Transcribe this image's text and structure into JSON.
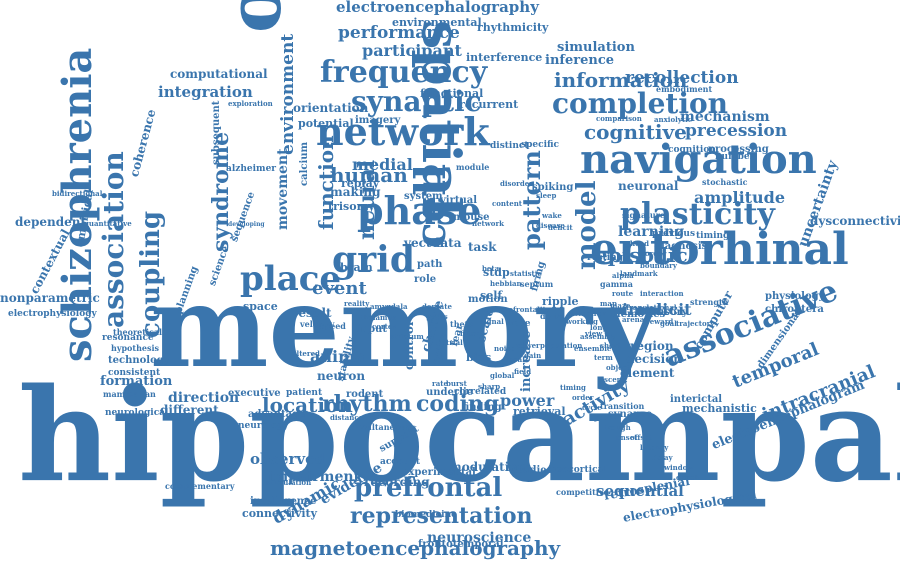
{
  "colors": {
    "primary": "#3a75ad",
    "background": "#ffffff"
  },
  "words": [
    "hippocampal",
    "memory",
    "spatial",
    "oscillation",
    "entorhinal",
    "schizophrenia",
    "navigation",
    "network",
    "phase",
    "grid",
    "place",
    "cell",
    "neural",
    "association",
    "associative",
    "coupling",
    "frequency",
    "synaptic",
    "plasticity",
    "completion",
    "cognitive",
    "model",
    "episodic",
    "prefrontal",
    "representation",
    "magnetoencephalography",
    "electroencephalography",
    "electroencephalogram",
    "intracranial",
    "rhythm",
    "coding",
    "location",
    "temporal",
    "syndrome",
    "environment",
    "information",
    "power",
    "activity",
    "dynamic",
    "performance",
    "participant",
    "recollection",
    "precession",
    "amplitude",
    "human",
    "pattern",
    "medial",
    "sequential",
    "implicit",
    "simulation",
    "inference",
    "interference",
    "rhythmicity",
    "environmental",
    "computational",
    "integration",
    "mechanism",
    "uncertainty",
    "learning",
    "neuronal",
    "function",
    "movement",
    "event",
    "animal",
    "direction",
    "formation",
    "observed",
    "different",
    "impairment",
    "neuroscience",
    "evidence",
    "recording",
    "modulation",
    "studies",
    "retrosplenial",
    "electrophysiological",
    "electrophysiology",
    "region",
    "decision",
    "element",
    "increase",
    "control",
    "stdp",
    "motion",
    "ripple",
    "task",
    "dependent",
    "contextual",
    "nonparametric",
    "coherence",
    "subsequent",
    "orientation",
    "potential",
    "imagery",
    "recurrent",
    "functional",
    "embodiment",
    "spiking",
    "trisomy",
    "calcium",
    "system",
    "virtual",
    "mouse",
    "space",
    "result",
    "diagnosis",
    "previous",
    "timing",
    "dysconnectivity",
    "sensory",
    "physiology",
    "chiroptera",
    "computer",
    "dimensional",
    "mechanistic",
    "processing",
    "number",
    "stochastic",
    "alzheimer",
    "empirical",
    "planning",
    "science",
    "sequence",
    "technology",
    "consistent",
    "resonance",
    "theoretical",
    "hypothesis",
    "mammalian",
    "neurological",
    "executive",
    "patient",
    "intelligence",
    "connectivity",
    "biomedicine",
    "frontotemporal",
    "experimental",
    "neocortical",
    "competitive",
    "support",
    "account",
    "rodent",
    "underlie",
    "correlated",
    "finding",
    "retrieval",
    "neuron",
    "stability",
    "advantage",
    "neurology",
    "making",
    "replay",
    "brain",
    "vector",
    "data",
    "path",
    "role",
    "bias",
    "fear",
    "self",
    "input",
    "change",
    "spike",
    "scale",
    "wave",
    "firing",
    "interictal",
    "synapse",
    "signature",
    "resting",
    "distinct",
    "specific",
    "cognition",
    "module",
    "memories",
    "complementary",
    "simultaneous",
    "stimulation",
    "transition",
    "strength",
    "velocity",
    "speed",
    "theta",
    "gamma",
    "alpha",
    "beta",
    "delta",
    "cortex",
    "thalamus",
    "amygdala",
    "striatum",
    "dentate",
    "gyrus",
    "septum",
    "prefrontality",
    "population",
    "ensemble",
    "assembly",
    "sleep",
    "wake",
    "attention",
    "working",
    "long",
    "short",
    "term",
    "object",
    "scene",
    "view",
    "head",
    "border",
    "boundary",
    "landmark",
    "route",
    "map",
    "maze",
    "arena",
    "reward",
    "goal",
    "trajectory",
    "exploration",
    "bidirectional",
    "quantitative",
    "translational",
    "anxiolytic",
    "comparison",
    "interaction",
    "developing",
    "deficit",
    "disorder",
    "disease",
    "hebbian",
    "statistic",
    "reality",
    "altered",
    "distance",
    "content",
    "network",
    "signal",
    "filter",
    "trial",
    "noise",
    "power",
    "gain",
    "local",
    "field",
    "global",
    "sharp",
    "burst",
    "rate",
    "timing",
    "order",
    "cycle",
    "peak",
    "trough",
    "onset",
    "offset",
    "latency",
    "delay",
    "window",
    "epoch"
  ]
}
